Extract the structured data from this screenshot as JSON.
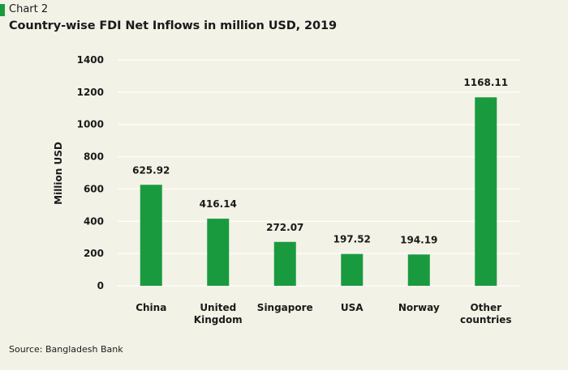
{
  "header": {
    "chart_label": "Chart 2",
    "title": "Country-wise FDI Net Inflows in million USD, 2019"
  },
  "source": "Source: Bangladesh Bank",
  "colors": {
    "accent": "#1a9a3f",
    "bar": "#1a9a3f",
    "background": "#f3f2e6",
    "grid": "#ffffff"
  },
  "chart_data": {
    "type": "bar",
    "categories": [
      [
        "China"
      ],
      [
        "United",
        "Kingdom"
      ],
      [
        "Singapore"
      ],
      [
        "USA"
      ],
      [
        "Norway"
      ],
      [
        "Other",
        "countries"
      ]
    ],
    "values": [
      625.92,
      416.14,
      272.07,
      197.52,
      194.19,
      1168.11
    ],
    "data_labels": [
      "625.92",
      "416.14",
      "272.07",
      "197.52",
      "194.19",
      "1168.11"
    ],
    "ylabel": "Million USD",
    "ylim": [
      0,
      1400
    ],
    "yticks": [
      0,
      200,
      400,
      600,
      800,
      1000,
      1200,
      1400
    ],
    "grid": true,
    "legend": "none"
  }
}
